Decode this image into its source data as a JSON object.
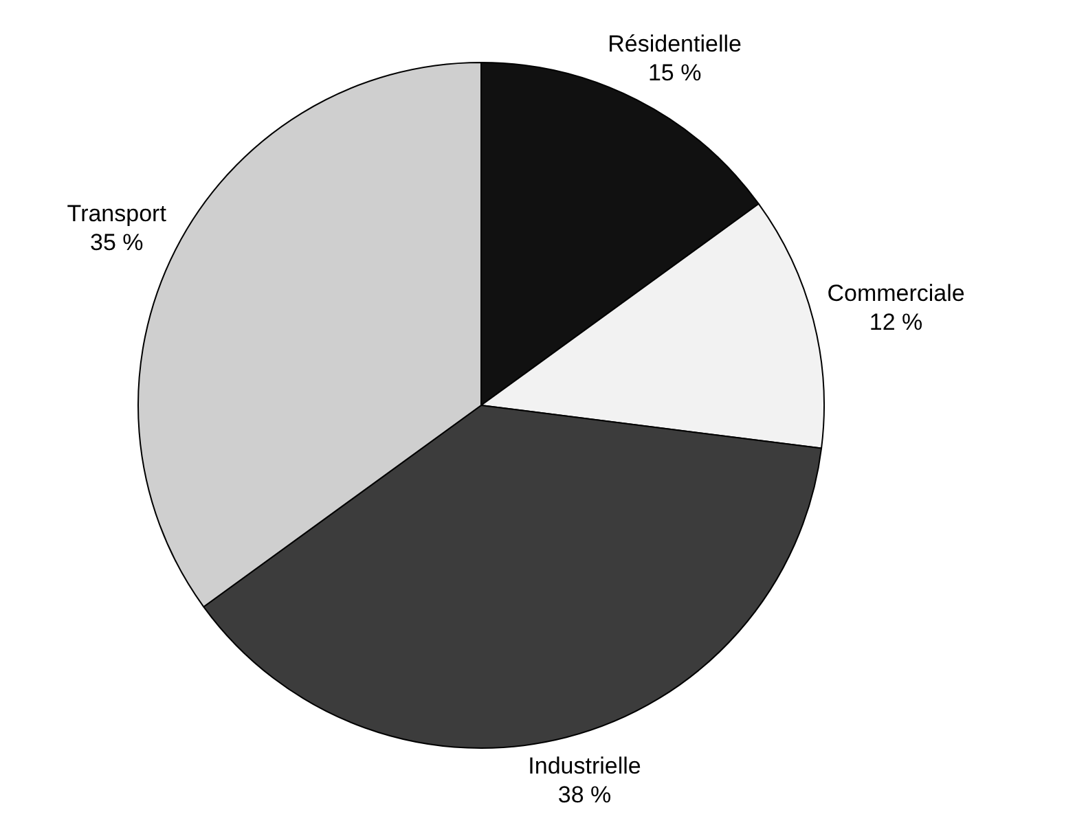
{
  "chart_data": {
    "type": "pie",
    "categories": [
      "Résidentielle",
      "Commerciale",
      "Industrielle",
      "Transport"
    ],
    "values": [
      15,
      12,
      38,
      35
    ],
    "value_labels": [
      "15 %",
      "12 %",
      "38 %",
      "35 %"
    ],
    "colors": [
      "#111111",
      "#f2f2f2",
      "#3c3c3c",
      "#cfcfcf"
    ],
    "legend": false
  }
}
